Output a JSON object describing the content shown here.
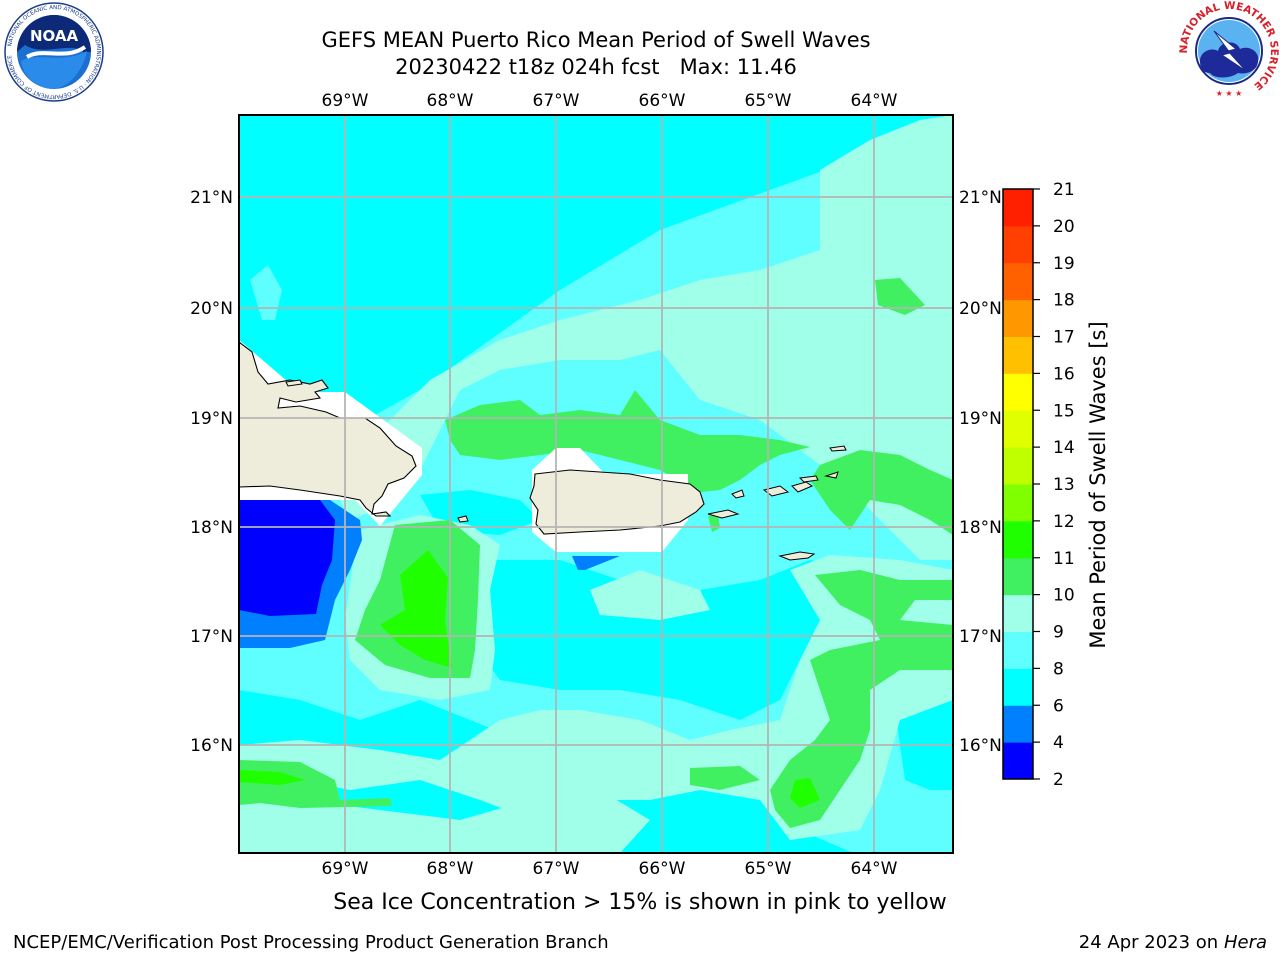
{
  "header": {
    "title_line1": "GEFS MEAN Puerto Rico Mean Period of Swell Waves",
    "title_line2": "20230422 t18z 024h fcst   Max: 11.46"
  },
  "map": {
    "lon_labels": [
      "69°W",
      "68°W",
      "67°W",
      "66°W",
      "65°W",
      "64°W"
    ],
    "lat_labels": [
      "21°N",
      "20°N",
      "19°N",
      "18°N",
      "17°N",
      "16°N"
    ],
    "colors": {
      "land": "#eeecdb",
      "missing": "#ffffff",
      "grid": "#b4b4b4",
      "coast": "#000000"
    }
  },
  "colorbar": {
    "title": "Mean Period of Swell Waves [s]",
    "tick_labels": [
      "21",
      "20",
      "19",
      "18",
      "17",
      "16",
      "15",
      "14",
      "13",
      "12",
      "11",
      "10",
      "9",
      "8",
      "6",
      "4",
      "2"
    ],
    "levels": [
      2,
      4,
      6,
      8,
      9,
      10,
      11,
      12,
      13,
      14,
      15,
      16,
      17,
      18,
      19,
      20,
      21
    ],
    "colors": [
      "#0000ff",
      "#0080ff",
      "#00ffff",
      "#60ffff",
      "#a0ffe8",
      "#40f060",
      "#20ff00",
      "#80ff00",
      "#c0ff00",
      "#e0ff00",
      "#ffff00",
      "#ffc000",
      "#ff9800",
      "#ff6000",
      "#ff4000",
      "#ff2000"
    ]
  },
  "footnote": "Sea Ice Concentration > 15% is shown in pink to yellow",
  "credits": {
    "left": "NCEP/EMC/Verification Post Processing Product Generation Branch",
    "right_prefix": "24 Apr 2023 on ",
    "right_host": "Hera"
  },
  "logos": {
    "noaa_text": "NOAA",
    "noaa_ring": "NATIONAL OCEANIC AND ATMOSPHERIC ADMINISTRATION · U.S. DEPARTMENT OF COMMERCE",
    "nws_ring": "NATIONAL WEATHER SERVICE"
  }
}
